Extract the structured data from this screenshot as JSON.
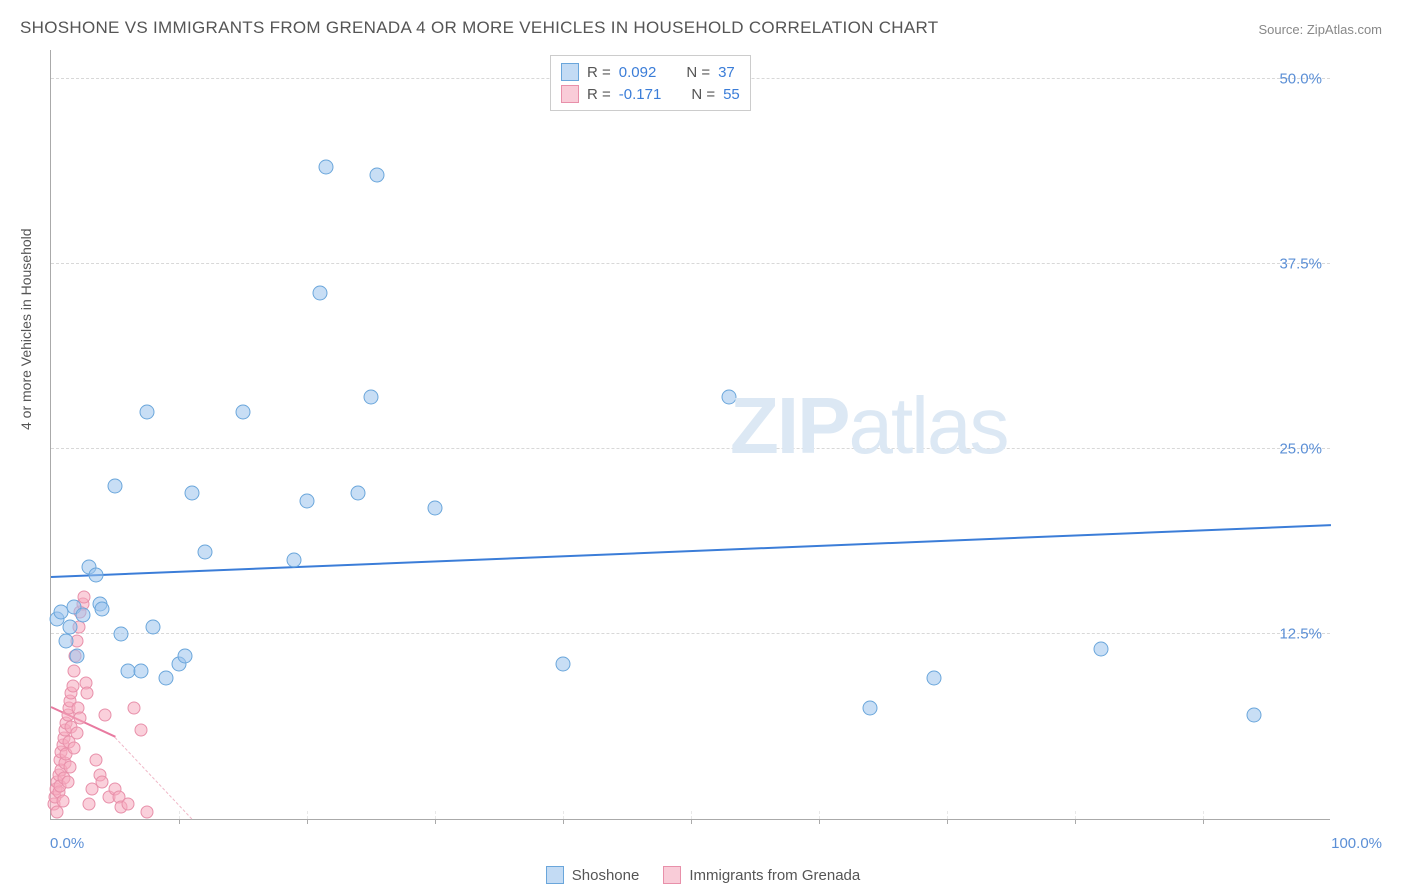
{
  "chart": {
    "type": "scatter",
    "title": "SHOSHONE VS IMMIGRANTS FROM GRENADA 4 OR MORE VEHICLES IN HOUSEHOLD CORRELATION CHART",
    "source": "Source: ZipAtlas.com",
    "y_axis_label": "4 or more Vehicles in Household",
    "watermark_bold": "ZIP",
    "watermark_light": "atlas",
    "background_color": "#ffffff",
    "grid_color": "#d8d8d8",
    "axis_color": "#aaaaaa",
    "title_color": "#555555",
    "label_color": "#555555",
    "tick_label_color": "#5b8fd6",
    "title_fontsize": 17,
    "tick_fontsize": 15,
    "xlim": [
      0,
      100
    ],
    "ylim": [
      0,
      52
    ],
    "x_ticks": [
      0,
      100
    ],
    "x_tick_labels": [
      "0.0%",
      "100.0%"
    ],
    "x_minor_ticks": [
      10,
      20,
      30,
      40,
      50,
      60,
      70,
      80,
      90
    ],
    "y_ticks": [
      12.5,
      25.0,
      37.5,
      50.0
    ],
    "y_tick_labels": [
      "12.5%",
      "25.0%",
      "37.5%",
      "50.0%"
    ],
    "legend_top": {
      "rows": [
        {
          "color": "blue",
          "r_label": "R =",
          "r_value": "0.092",
          "n_label": "N =",
          "n_value": "37"
        },
        {
          "color": "pink",
          "r_label": "R =",
          "r_value": "-0.171",
          "n_label": "N =",
          "n_value": "55"
        }
      ]
    },
    "legend_bottom": {
      "items": [
        {
          "color": "blue",
          "label": "Shoshone"
        },
        {
          "color": "pink",
          "label": "Immigrants from Grenada"
        }
      ]
    },
    "series_blue": {
      "marker_fill": "rgba(155,195,236,0.55)",
      "marker_stroke": "#6aa6db",
      "marker_size": 15,
      "trend_color": "#3b7dd8",
      "trend_width": 2,
      "trend_start": [
        0,
        16.3
      ],
      "trend_end": [
        100,
        19.8
      ],
      "points": [
        [
          0.5,
          13.5
        ],
        [
          0.8,
          14.0
        ],
        [
          1.2,
          12.0
        ],
        [
          1.5,
          13.0
        ],
        [
          1.8,
          14.3
        ],
        [
          2.0,
          11.0
        ],
        [
          2.5,
          13.8
        ],
        [
          3.0,
          17.0
        ],
        [
          3.5,
          16.5
        ],
        [
          3.8,
          14.5
        ],
        [
          4.0,
          14.2
        ],
        [
          5.0,
          22.5
        ],
        [
          5.5,
          12.5
        ],
        [
          6.0,
          10.0
        ],
        [
          7.0,
          10.0
        ],
        [
          7.5,
          27.5
        ],
        [
          8.0,
          13.0
        ],
        [
          9.0,
          9.5
        ],
        [
          10.0,
          10.5
        ],
        [
          10.5,
          11.0
        ],
        [
          11.0,
          22.0
        ],
        [
          12.0,
          18.0
        ],
        [
          15.0,
          27.5
        ],
        [
          19.0,
          17.5
        ],
        [
          20.0,
          21.5
        ],
        [
          21.0,
          35.5
        ],
        [
          21.5,
          44.0
        ],
        [
          24.0,
          22.0
        ],
        [
          25.0,
          28.5
        ],
        [
          25.5,
          43.5
        ],
        [
          30.0,
          21.0
        ],
        [
          40.0,
          10.5
        ],
        [
          53.0,
          28.5
        ],
        [
          64.0,
          7.5
        ],
        [
          69.0,
          9.5
        ],
        [
          82.0,
          11.5
        ],
        [
          94.0,
          7.0
        ]
      ]
    },
    "series_pink": {
      "marker_fill": "rgba(245,170,190,0.55)",
      "marker_stroke": "#e890aa",
      "marker_size": 13,
      "trend_color": "#e87aa0",
      "trend_width": 2,
      "trend_solid_start": [
        0,
        7.5
      ],
      "trend_solid_end": [
        5,
        5.5
      ],
      "trend_dash_end": [
        11,
        0.0
      ],
      "points": [
        [
          0.2,
          1.0
        ],
        [
          0.3,
          1.5
        ],
        [
          0.4,
          2.0
        ],
        [
          0.5,
          0.5
        ],
        [
          0.5,
          2.5
        ],
        [
          0.6,
          3.0
        ],
        [
          0.6,
          1.8
        ],
        [
          0.7,
          4.0
        ],
        [
          0.7,
          2.2
        ],
        [
          0.8,
          4.5
        ],
        [
          0.8,
          3.3
        ],
        [
          0.9,
          5.0
        ],
        [
          0.9,
          1.2
        ],
        [
          1.0,
          5.5
        ],
        [
          1.0,
          2.8
        ],
        [
          1.1,
          6.0
        ],
        [
          1.1,
          3.8
        ],
        [
          1.2,
          6.5
        ],
        [
          1.2,
          4.4
        ],
        [
          1.3,
          7.0
        ],
        [
          1.3,
          2.5
        ],
        [
          1.4,
          7.5
        ],
        [
          1.4,
          5.2
        ],
        [
          1.5,
          8.0
        ],
        [
          1.5,
          3.5
        ],
        [
          1.6,
          8.5
        ],
        [
          1.6,
          6.2
        ],
        [
          1.7,
          9.0
        ],
        [
          1.8,
          10.0
        ],
        [
          1.8,
          4.8
        ],
        [
          1.9,
          11.0
        ],
        [
          2.0,
          12.0
        ],
        [
          2.0,
          5.8
        ],
        [
          2.1,
          7.5
        ],
        [
          2.2,
          13.0
        ],
        [
          2.3,
          14.0
        ],
        [
          2.3,
          6.8
        ],
        [
          2.5,
          14.5
        ],
        [
          2.6,
          15.0
        ],
        [
          2.7,
          9.2
        ],
        [
          2.8,
          8.5
        ],
        [
          3.0,
          1.0
        ],
        [
          3.2,
          2.0
        ],
        [
          3.5,
          4.0
        ],
        [
          3.8,
          3.0
        ],
        [
          4.0,
          2.5
        ],
        [
          4.2,
          7.0
        ],
        [
          4.5,
          1.5
        ],
        [
          5.0,
          2.0
        ],
        [
          5.3,
          1.5
        ],
        [
          5.5,
          0.8
        ],
        [
          6.0,
          1.0
        ],
        [
          6.5,
          7.5
        ],
        [
          7.0,
          6.0
        ],
        [
          7.5,
          0.5
        ]
      ]
    }
  }
}
